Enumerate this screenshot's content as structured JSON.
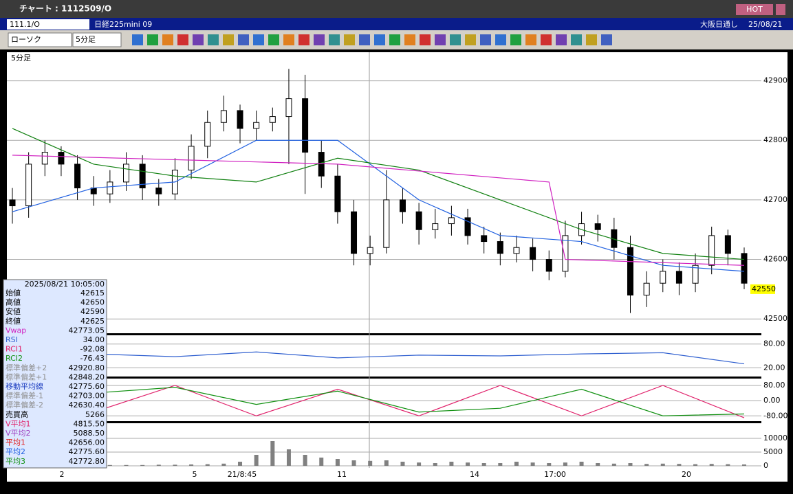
{
  "window": {
    "title": "チャート : 1112509/O",
    "hot": "HOT"
  },
  "header": {
    "symbol": "111.1/O",
    "name": "日経225mini 09",
    "session": "大阪日通し",
    "date": "25/08/21"
  },
  "toolbar": {
    "chart_type": "ローソク",
    "interval": "5分足"
  },
  "chart_data": {
    "type": "candlestick",
    "panel_label": "5分足",
    "current_price": "42550",
    "ylim": [
      42476,
      42948
    ],
    "yticks": [
      42500,
      42600,
      42700,
      42800,
      42900
    ],
    "x_labels": [
      "2",
      "5",
      "21/8:45",
      "11",
      "14",
      "17:00",
      "20"
    ],
    "open": [
      42700,
      42690,
      42760,
      42780,
      42760,
      42720,
      42710,
      42730,
      42760,
      42720,
      42710,
      42750,
      42790,
      42830,
      42850,
      42820,
      42830,
      42840,
      42870,
      42780,
      42740,
      42680,
      42610,
      42620,
      42700,
      42680,
      42650,
      42660,
      42670,
      42640,
      42630,
      42610,
      42620,
      42600,
      42580,
      42640,
      42660,
      42650,
      42620,
      42540,
      42560,
      42580,
      42560,
      42590,
      42640,
      42610
    ],
    "high": [
      42720,
      42780,
      42800,
      42790,
      42775,
      42740,
      42750,
      42780,
      42775,
      42735,
      42770,
      42810,
      42850,
      42875,
      42860,
      42850,
      42855,
      42920,
      42910,
      42800,
      42760,
      42700,
      42640,
      42750,
      42720,
      42695,
      42685,
      42690,
      42685,
      42655,
      42645,
      42640,
      42635,
      42615,
      42665,
      42680,
      42675,
      42670,
      42640,
      42580,
      42600,
      42595,
      42610,
      42655,
      42650,
      42620
    ],
    "low": [
      42660,
      42670,
      42740,
      42740,
      42700,
      42690,
      42695,
      42715,
      42700,
      42690,
      42700,
      42735,
      42770,
      42815,
      42795,
      42800,
      42815,
      42760,
      42710,
      42720,
      42660,
      42590,
      42590,
      42610,
      42660,
      42625,
      42635,
      42640,
      42625,
      42610,
      42590,
      42595,
      42580,
      42565,
      42570,
      42625,
      42630,
      42600,
      42510,
      42520,
      42545,
      42540,
      42545,
      42575,
      42590,
      42550
    ],
    "close": [
      42690,
      42760,
      42780,
      42760,
      42720,
      42710,
      42730,
      42760,
      42720,
      42710,
      42750,
      42790,
      42830,
      42850,
      42820,
      42830,
      42840,
      42870,
      42780,
      42740,
      42680,
      42610,
      42620,
      42700,
      42680,
      42650,
      42660,
      42670,
      42640,
      42630,
      42610,
      42620,
      42600,
      42580,
      42640,
      42660,
      42650,
      42620,
      42540,
      42560,
      42580,
      42560,
      42590,
      42640,
      42610,
      42560
    ],
    "series": [
      {
        "name": "平均2",
        "color": "#2060e0",
        "x": [
          0,
          5,
          10,
          15,
          20,
          25,
          30,
          35,
          40,
          45
        ],
        "values": [
          42680,
          42720,
          42730,
          42800,
          42800,
          42700,
          42640,
          42630,
          42590,
          42580
        ]
      },
      {
        "name": "平均3",
        "color": "#108010",
        "x": [
          0,
          5,
          10,
          15,
          20,
          25,
          30,
          35,
          40,
          45
        ],
        "values": [
          42820,
          42760,
          42740,
          42730,
          42770,
          42750,
          42700,
          42650,
          42610,
          42600
        ]
      },
      {
        "name": "Vwap",
        "color": "#d020c0",
        "x": [
          0,
          20,
          33,
          34,
          45
        ],
        "values": [
          42775,
          42760,
          42730,
          42600,
          42590
        ]
      }
    ],
    "rsi": {
      "ylim": [
        -2,
        102
      ],
      "yticks": [
        {
          "value": 20,
          "label": "20.00"
        },
        {
          "value": 80,
          "label": "80.00"
        }
      ],
      "color": "#3060d0",
      "x": [
        0,
        5,
        10,
        15,
        20,
        25,
        30,
        35,
        40,
        45
      ],
      "values": [
        50,
        55,
        48,
        60,
        45,
        52,
        50,
        55,
        58,
        30
      ]
    },
    "rci": {
      "ylim": [
        -108,
        116
      ],
      "yticks": [
        {
          "value": 80,
          "label": "80.00"
        },
        {
          "value": 0,
          "label": "0.00"
        },
        {
          "value": -80,
          "label": "-80.00"
        }
      ],
      "series": [
        {
          "name": "RCI1",
          "color": "#e0206a",
          "x": [
            0,
            5,
            10,
            15,
            20,
            25,
            30,
            35,
            40,
            45
          ],
          "values": [
            0,
            -60,
            80,
            -80,
            60,
            -80,
            80,
            -80,
            80,
            -90
          ]
        },
        {
          "name": "RCI2",
          "color": "#109010",
          "x": [
            0,
            5,
            10,
            15,
            20,
            25,
            30,
            35,
            40,
            45
          ],
          "values": [
            -40,
            40,
            70,
            -20,
            50,
            -60,
            -40,
            60,
            -80,
            -70
          ]
        }
      ]
    },
    "volume": {
      "ylim": [
        -750,
        15500
      ],
      "yticks": [
        10000,
        5000,
        0
      ],
      "color": "#808080",
      "values": [
        300,
        400,
        300,
        300,
        500,
        400,
        300,
        300,
        300,
        400,
        400,
        500,
        600,
        800,
        1500,
        4000,
        9000,
        6000,
        4000,
        3000,
        2500,
        2000,
        1800,
        2000,
        1500,
        1200,
        1000,
        1500,
        1200,
        1000,
        1000,
        1500,
        1200,
        1000,
        1200,
        1500,
        1000,
        800,
        1000,
        700,
        800,
        700,
        600,
        700,
        600,
        500
      ]
    }
  },
  "info_panel": {
    "datetime": "2025/08/21 10:05:00",
    "rows": [
      {
        "label": "始値",
        "value": "42615",
        "color": "#000000"
      },
      {
        "label": "高値",
        "value": "42650",
        "color": "#000000"
      },
      {
        "label": "安値",
        "value": "42590",
        "color": "#000000"
      },
      {
        "label": "終値",
        "value": "42625",
        "color": "#000000"
      },
      {
        "label": "Vwap",
        "value": "42773.05",
        "color": "#d020c0"
      },
      {
        "label": "RSI",
        "value": "34.00",
        "color": "#3060d0"
      },
      {
        "label": "RCI1",
        "value": "-92.08",
        "color": "#e0206a"
      },
      {
        "label": "RCI2",
        "value": "-76.43",
        "color": "#109010"
      },
      {
        "label": "標準偏差+2",
        "value": "42920.80",
        "color": "#909090"
      },
      {
        "label": "標準偏差+1",
        "value": "42848.20",
        "color": "#909090"
      },
      {
        "label": "移動平均線",
        "value": "42775.60",
        "color": "#2040c0"
      },
      {
        "label": "標準偏差-1",
        "value": "42703.00",
        "color": "#909090"
      },
      {
        "label": "標準偏差-2",
        "value": "42630.40",
        "color": "#909090"
      },
      {
        "label": "売買高",
        "value": "5266",
        "color": "#000000"
      },
      {
        "label": "V平均1",
        "value": "4815.50",
        "color": "#e0206a"
      },
      {
        "label": "V平均2",
        "value": "5088.50",
        "color": "#a040c0"
      },
      {
        "label": "平均1",
        "value": "42656.00",
        "color": "#e02020"
      },
      {
        "label": "平均2",
        "value": "42775.60",
        "color": "#2060e0"
      },
      {
        "label": "平均3",
        "value": "42772.80",
        "color": "#109010"
      }
    ]
  }
}
